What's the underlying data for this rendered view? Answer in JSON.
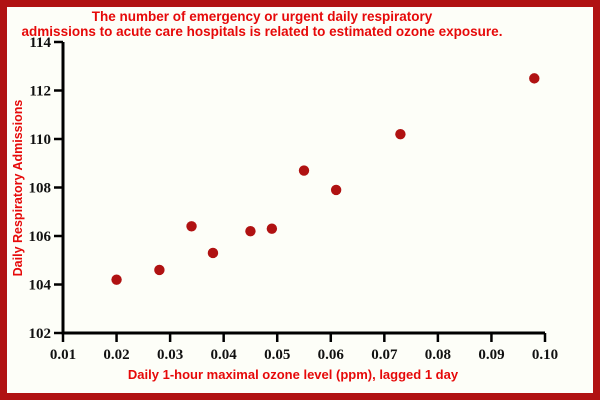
{
  "frame": {
    "border_color": "#B01212",
    "background_color": "#FDFEF8"
  },
  "title": {
    "line1": "The number of emergency or urgent daily respiratory",
    "line2": "admissions to acute care hospitals is related to estimated ozone exposure.",
    "color": "#E60909"
  },
  "chart_data": {
    "type": "scatter",
    "title": "The number of emergency or urgent daily respiratory admissions to acute care hospitals is related to estimated ozone exposure.",
    "xlabel": "Daily 1-hour maximal ozone level (ppm), lagged 1 day",
    "ylabel": "Daily Respiratory Admissions",
    "xlim": [
      0.01,
      0.1
    ],
    "ylim": [
      102,
      114
    ],
    "x_ticks": [
      0.01,
      0.02,
      0.03,
      0.04,
      0.05,
      0.06,
      0.07,
      0.08,
      0.09,
      0.1
    ],
    "x_tick_labels": [
      "0.01",
      "0.02",
      "0.03",
      "0.04",
      "0.05",
      "0.06",
      "0.07",
      "0.08",
      "0.09",
      "0.10"
    ],
    "y_ticks": [
      102,
      104,
      106,
      108,
      110,
      112,
      114
    ],
    "y_tick_labels": [
      "102",
      "104",
      "106",
      "108",
      "110",
      "112",
      "114"
    ],
    "grid": false,
    "legend": "none",
    "point_color": "#B01212",
    "axis_color": "#000000",
    "points": [
      {
        "x": 0.02,
        "y": 104.2
      },
      {
        "x": 0.028,
        "y": 104.6
      },
      {
        "x": 0.034,
        "y": 106.4
      },
      {
        "x": 0.038,
        "y": 105.3
      },
      {
        "x": 0.045,
        "y": 106.2
      },
      {
        "x": 0.049,
        "y": 106.3
      },
      {
        "x": 0.055,
        "y": 108.7
      },
      {
        "x": 0.061,
        "y": 107.9
      },
      {
        "x": 0.073,
        "y": 110.2
      },
      {
        "x": 0.098,
        "y": 112.5
      }
    ]
  }
}
